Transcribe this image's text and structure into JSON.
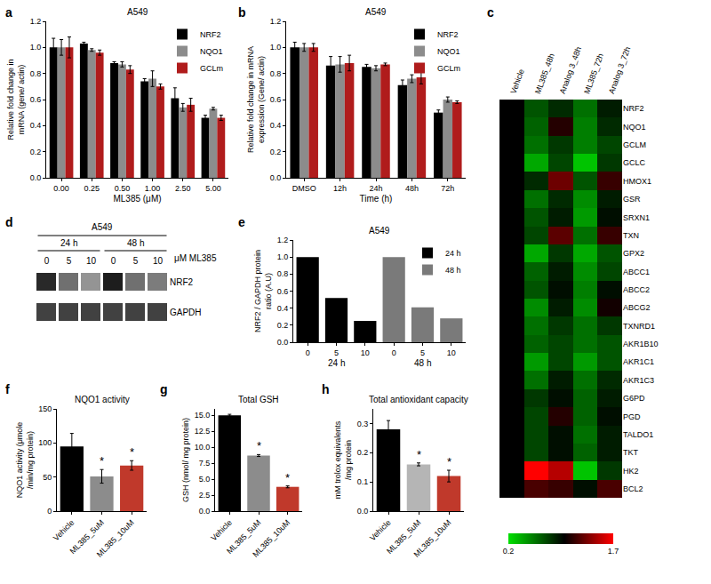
{
  "chart_data": [
    {
      "panel": "a",
      "type": "bar",
      "title": "A549",
      "categories": [
        "0.00",
        "0.25",
        "0.50",
        "1.00",
        "2.50",
        "5.00"
      ],
      "xlabel": "ML385 (μM)",
      "ylabel": [
        "Relative fold change in",
        "mRNA (gene/ actin)"
      ],
      "ylim": [
        0,
        1.2
      ],
      "yticks": [
        {
          "value": 0,
          "label": "0.0"
        },
        0.2,
        0.4,
        0.6,
        0.8,
        {
          "value": 1,
          "label": "1.0"
        },
        1.2
      ],
      "grid": false,
      "legend": "upper right",
      "series": [
        {
          "name": "NRF2",
          "color": "#000000",
          "values": [
            1.0,
            1.03,
            0.88,
            0.74,
            0.61,
            0.46
          ],
          "errors": [
            0.07,
            0.01,
            0.01,
            0.02,
            0.08,
            0.02
          ]
        },
        {
          "name": "NQO1",
          "color": "#8c8c8c",
          "values": [
            1.0,
            0.98,
            0.87,
            0.76,
            0.54,
            0.53
          ],
          "errors": [
            0.06,
            0.01,
            0.02,
            0.06,
            0.03,
            0.01
          ]
        },
        {
          "name": "GCLm",
          "color": "#b01c1c",
          "values": [
            1.0,
            0.96,
            0.83,
            0.7,
            0.56,
            0.46
          ],
          "errors": [
            0.08,
            0.02,
            0.03,
            0.02,
            0.05,
            0.02
          ]
        }
      ]
    },
    {
      "panel": "b",
      "type": "bar",
      "title": "A549",
      "categories": [
        "DMSO",
        "12h",
        "24h",
        "48h",
        "72h"
      ],
      "xlabel": "Time (h)",
      "ylabel": [
        "Relative fold change in mRNA",
        "expression (Gene/ actin)"
      ],
      "ylim": [
        0,
        1.2
      ],
      "yticks": [
        {
          "value": 0,
          "label": "0.0"
        },
        0.2,
        0.4,
        0.6,
        0.8,
        {
          "value": 1,
          "label": "1.0"
        },
        1.2
      ],
      "grid": false,
      "legend": "upper right",
      "series": [
        {
          "name": "NRF2",
          "color": "#000000",
          "values": [
            1.0,
            0.86,
            0.85,
            0.71,
            0.5
          ],
          "errors": [
            0.04,
            0.07,
            0.02,
            0.04,
            0.02
          ]
        },
        {
          "name": "NQO1",
          "color": "#8c8c8c",
          "values": [
            1.0,
            0.87,
            0.84,
            0.76,
            0.6
          ],
          "errors": [
            0.03,
            0.06,
            0.02,
            0.03,
            0.02
          ]
        },
        {
          "name": "GCLm",
          "color": "#b01c1c",
          "values": [
            1.0,
            0.88,
            0.87,
            0.77,
            0.58
          ],
          "errors": [
            0.03,
            0.06,
            0.01,
            0.05,
            0.01
          ]
        }
      ]
    },
    {
      "panel": "c",
      "type": "heatmap",
      "columns": [
        "Vehicle",
        "ML385_48h",
        "Analog 3_48h",
        "ML385_72h",
        "Analog 3_72h"
      ],
      "rows": [
        "NRF2",
        "NQO1",
        "GCLM",
        "GCLC",
        "HMOX1",
        "GSR",
        "SRXN1",
        "TXN",
        "GPX2",
        "ABCC1",
        "ABCC2",
        "ABCG2",
        "TXNRD1",
        "AKR1B10",
        "AKR1C1",
        "AKR1C3",
        "G6PD",
        "PGD",
        "TALDO1",
        "TKT",
        "HK2",
        "BCL2"
      ],
      "z": [
        [
          1,
          0.7,
          0.85,
          0.6,
          0.9
        ],
        [
          1,
          0.65,
          1.1,
          0.55,
          0.85
        ],
        [
          1,
          0.6,
          0.8,
          0.55,
          0.75
        ],
        [
          1,
          0.4,
          0.75,
          0.3,
          0.8
        ],
        [
          1,
          0.85,
          1.3,
          0.7,
          1.15
        ],
        [
          1,
          0.6,
          0.85,
          0.5,
          0.9
        ],
        [
          1,
          0.7,
          0.9,
          0.45,
          0.95
        ],
        [
          1,
          0.75,
          1.25,
          0.6,
          1.15
        ],
        [
          1,
          0.4,
          0.8,
          0.4,
          0.7
        ],
        [
          1,
          0.65,
          0.9,
          0.5,
          0.75
        ],
        [
          1,
          0.7,
          0.95,
          0.55,
          0.95
        ],
        [
          1,
          0.5,
          0.9,
          0.5,
          1.05
        ],
        [
          1,
          0.6,
          0.8,
          0.6,
          0.8
        ],
        [
          1,
          0.65,
          0.75,
          0.6,
          0.7
        ],
        [
          1,
          0.45,
          0.75,
          0.45,
          0.7
        ],
        [
          1,
          0.6,
          0.9,
          0.6,
          0.85
        ],
        [
          1,
          0.8,
          0.95,
          0.65,
          0.9
        ],
        [
          1,
          0.75,
          1.1,
          0.65,
          0.95
        ],
        [
          1,
          0.75,
          0.95,
          0.6,
          0.9
        ],
        [
          1,
          0.75,
          0.95,
          0.65,
          0.9
        ],
        [
          1,
          1.7,
          1.5,
          0.3,
          0.8
        ],
        [
          1,
          1.2,
          1.15,
          0.95,
          1.2
        ]
      ],
      "colors": [
        "#00e000",
        "#000000",
        "#ff0000"
      ],
      "colorbar": {
        "range": [
          0.2,
          1.7
        ],
        "center": 1,
        "ticks": [
          0.2,
          1.7
        ]
      }
    },
    {
      "panel": "d",
      "type": "blot",
      "title": "A549",
      "lanes": [
        "0",
        "5",
        "10",
        "0",
        "5",
        "10"
      ],
      "groups": [
        {
          "label": "24 h",
          "lanes": [
            0,
            1,
            2
          ]
        },
        {
          "label": "48 h",
          "lanes": [
            3,
            4,
            5
          ]
        }
      ],
      "lane_title": "μM ML385",
      "rows": [
        "NRF2",
        "GAPDH"
      ],
      "intensity": [
        [
          0.9,
          0.6,
          0.45,
          0.95,
          0.6,
          0.55
        ],
        [
          0.8,
          0.8,
          0.8,
          0.8,
          0.8,
          0.8
        ]
      ],
      "zlim": [
        0,
        1
      ]
    },
    {
      "panel": "e",
      "type": "bar",
      "title": "A549",
      "categories": [
        "0",
        "5",
        "10",
        "0",
        "5",
        "10"
      ],
      "ylabel": [
        "NRF2 / GAPDH protein",
        "ratio (A.U)"
      ],
      "ylim": [
        0,
        1.2
      ],
      "yticks": [
        {
          "value": 0,
          "label": "0.0"
        },
        0.2,
        0.4,
        0.6,
        0.8,
        {
          "value": 1,
          "label": "1.0"
        },
        1.2
      ],
      "grid": false,
      "legend": "upper right",
      "series": [
        {
          "name": "24 h",
          "color": "#000000",
          "values": [
            1.0,
            0.52,
            0.25,
            null,
            null,
            null
          ]
        },
        {
          "name": "48 h",
          "color": "#7a7a7a",
          "values": [
            null,
            null,
            null,
            1.0,
            0.41,
            0.28
          ]
        }
      ]
    },
    {
      "panel": "f",
      "type": "bar",
      "title": "NQO1 activity",
      "categories": [
        "Vehicle",
        "ML385_5uM",
        "ML385_10uM"
      ],
      "ylabel": [
        "NQO1 activity (μmole",
        "/min/mg protein)"
      ],
      "ylim": [
        0,
        150
      ],
      "yticks": [
        0,
        50,
        100,
        150
      ],
      "grid": false,
      "colors": [
        "#000000",
        "#8c8c8c",
        "#c0392b"
      ],
      "values": [
        95,
        51,
        67
      ],
      "errors": [
        19,
        10,
        7
      ],
      "annotations": [
        {
          "text": "*",
          "index": 1
        },
        {
          "text": "*",
          "index": 2
        }
      ]
    },
    {
      "panel": "g",
      "type": "bar",
      "title": "Total GSH",
      "categories": [
        "Vehicle",
        "ML385_5uM",
        "ML385_10uM"
      ],
      "ylabel": "GSH (nmol/ mg protein)",
      "ylim": [
        0,
        16
      ],
      "yticks": [
        {
          "value": 0,
          "label": "0.0"
        },
        2.5,
        {
          "value": 5,
          "label": "5.0"
        },
        7.5,
        {
          "value": 10,
          "label": "10.0"
        },
        12.5,
        {
          "value": 15,
          "label": "15.0"
        }
      ],
      "grid": false,
      "colors": [
        "#000000",
        "#8c8c8c",
        "#c0392b"
      ],
      "values": [
        15.0,
        8.7,
        3.8
      ],
      "errors": [
        0.15,
        0.15,
        0.15
      ],
      "annotations": [
        {
          "text": "*",
          "index": 1
        },
        {
          "text": "*",
          "index": 2
        }
      ]
    },
    {
      "panel": "h",
      "type": "bar",
      "title": "Total antioxidant capacity",
      "categories": [
        "Vehicle",
        "ML385_5uM",
        "ML385_10uM"
      ],
      "ylabel": [
        "mM trolox equivalents",
        "/mg protein"
      ],
      "ylim": [
        0,
        0.35
      ],
      "yticks": [
        {
          "value": 0,
          "label": "0.0"
        },
        0.1,
        0.2,
        0.3
      ],
      "grid": false,
      "colors": [
        "#000000",
        "#b5b5b5",
        "#c0392b"
      ],
      "values": [
        0.28,
        0.16,
        0.12
      ],
      "errors": [
        0.03,
        0.005,
        0.02
      ],
      "annotations": [
        {
          "text": "*",
          "index": 1
        },
        {
          "text": "*",
          "index": 2
        }
      ]
    }
  ]
}
